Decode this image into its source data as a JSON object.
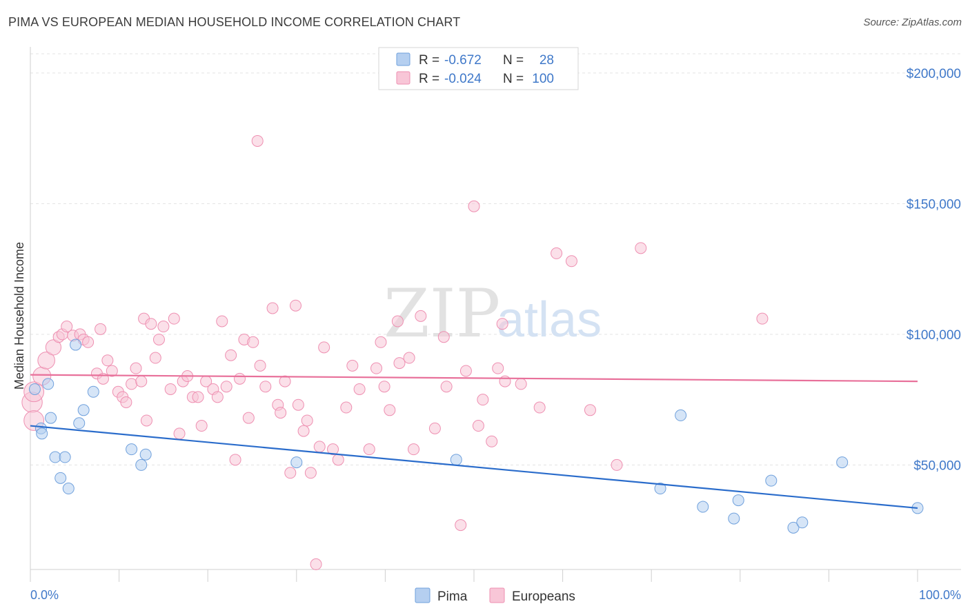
{
  "header": {
    "title": "PIMA VS EUROPEAN MEDIAN HOUSEHOLD INCOME CORRELATION CHART",
    "source": "Source: ZipAtlas.com"
  },
  "watermark": {
    "zip": "ZIP",
    "atlas": "atlas"
  },
  "chart_data": {
    "type": "scatter",
    "xlabel": "",
    "ylabel": "Median Household Income",
    "xlim": [
      0,
      100
    ],
    "ylim": [
      10000,
      210000
    ],
    "x_tick_labels": [
      "0.0%",
      "100.0%"
    ],
    "y_ticks": [
      50000,
      100000,
      150000,
      200000
    ],
    "y_tick_labels": [
      "$50,000",
      "$100,000",
      "$150,000",
      "$200,000"
    ],
    "grid": true,
    "legend_position": "top-center",
    "stats": [
      {
        "r_label": "R =",
        "r_value": "-0.672",
        "n_label": "N =",
        "n_value": "28"
      },
      {
        "r_label": "R =",
        "r_value": "-0.024",
        "n_label": "N =",
        "n_value": "100"
      }
    ],
    "series": [
      {
        "name": "Pima",
        "color": "#6fa0dc",
        "fill": "#b5cff0",
        "line_color": "#2a6ccb",
        "trend": {
          "x": [
            0,
            100
          ],
          "y": [
            65000,
            33500
          ]
        },
        "points": [
          [
            0.5,
            79000
          ],
          [
            1.2,
            64000
          ],
          [
            1.3,
            62000
          ],
          [
            2.0,
            81000
          ],
          [
            2.3,
            68000
          ],
          [
            2.8,
            53000
          ],
          [
            3.4,
            45000
          ],
          [
            3.9,
            53000
          ],
          [
            4.3,
            41000
          ],
          [
            5.1,
            96000
          ],
          [
            5.5,
            66000
          ],
          [
            6.0,
            71000
          ],
          [
            7.1,
            78000
          ],
          [
            11.4,
            56000
          ],
          [
            12.5,
            50000
          ],
          [
            13.0,
            54000
          ],
          [
            30.0,
            51000
          ],
          [
            48.0,
            52000
          ],
          [
            71.0,
            41000
          ],
          [
            73.3,
            69000
          ],
          [
            75.8,
            34000
          ],
          [
            79.3,
            29500
          ],
          [
            79.8,
            36500
          ],
          [
            83.5,
            44000
          ],
          [
            86.0,
            26000
          ],
          [
            87.0,
            28000
          ],
          [
            91.5,
            51000
          ],
          [
            100.0,
            33500
          ]
        ]
      },
      {
        "name": "Europeans",
        "color": "#ee8fb1",
        "fill": "#f8c6d7",
        "line_color": "#e8709a",
        "trend": {
          "x": [
            0,
            100
          ],
          "y": [
            84500,
            82000
          ]
        },
        "points": [
          [
            0.2,
            74000
          ],
          [
            0.4,
            78000
          ],
          [
            0.4,
            67000
          ],
          [
            1.3,
            84000
          ],
          [
            1.8,
            90000
          ],
          [
            2.6,
            95000
          ],
          [
            3.2,
            99000
          ],
          [
            3.6,
            100000
          ],
          [
            4.1,
            103000
          ],
          [
            4.8,
            99500
          ],
          [
            5.6,
            100000
          ],
          [
            6.0,
            98000
          ],
          [
            6.5,
            97000
          ],
          [
            7.5,
            85000
          ],
          [
            7.9,
            102000
          ],
          [
            8.2,
            83000
          ],
          [
            8.7,
            90000
          ],
          [
            9.2,
            86000
          ],
          [
            9.9,
            78000
          ],
          [
            10.4,
            76000
          ],
          [
            10.8,
            74000
          ],
          [
            11.4,
            81000
          ],
          [
            11.9,
            87000
          ],
          [
            12.5,
            82000
          ],
          [
            12.8,
            106000
          ],
          [
            13.1,
            67000
          ],
          [
            13.6,
            104000
          ],
          [
            14.1,
            91000
          ],
          [
            14.5,
            98000
          ],
          [
            15.0,
            103000
          ],
          [
            15.8,
            79000
          ],
          [
            16.2,
            106000
          ],
          [
            16.8,
            62000
          ],
          [
            17.2,
            82000
          ],
          [
            17.7,
            84000
          ],
          [
            18.3,
            76000
          ],
          [
            18.9,
            76000
          ],
          [
            19.3,
            65000
          ],
          [
            19.8,
            82000
          ],
          [
            20.6,
            79000
          ],
          [
            21.1,
            76000
          ],
          [
            21.6,
            105000
          ],
          [
            22.1,
            80000
          ],
          [
            22.6,
            92000
          ],
          [
            23.1,
            52000
          ],
          [
            23.6,
            83000
          ],
          [
            24.1,
            98000
          ],
          [
            24.6,
            68000
          ],
          [
            25.1,
            97000
          ],
          [
            25.6,
            174000
          ],
          [
            25.9,
            88000
          ],
          [
            26.5,
            80000
          ],
          [
            27.3,
            110000
          ],
          [
            27.9,
            73000
          ],
          [
            28.2,
            70000
          ],
          [
            28.7,
            82000
          ],
          [
            29.3,
            47000
          ],
          [
            29.9,
            111000
          ],
          [
            30.2,
            73000
          ],
          [
            30.8,
            63000
          ],
          [
            31.2,
            67000
          ],
          [
            31.6,
            47000
          ],
          [
            32.2,
            12000
          ],
          [
            32.6,
            57000
          ],
          [
            33.1,
            95000
          ],
          [
            34.1,
            56000
          ],
          [
            34.7,
            52000
          ],
          [
            35.6,
            72000
          ],
          [
            36.3,
            88000
          ],
          [
            37.1,
            79000
          ],
          [
            38.2,
            56000
          ],
          [
            39.0,
            87000
          ],
          [
            39.5,
            97000
          ],
          [
            39.9,
            80000
          ],
          [
            40.5,
            71000
          ],
          [
            41.6,
            89000
          ],
          [
            42.7,
            91000
          ],
          [
            43.2,
            56000
          ],
          [
            44.0,
            107000
          ],
          [
            45.6,
            64000
          ],
          [
            46.6,
            99000
          ],
          [
            46.9,
            80000
          ],
          [
            48.5,
            27000
          ],
          [
            49.1,
            86000
          ],
          [
            50.0,
            149000
          ],
          [
            50.5,
            65000
          ],
          [
            51.0,
            75000
          ],
          [
            52.0,
            59000
          ],
          [
            53.2,
            104000
          ],
          [
            53.5,
            82000
          ],
          [
            55.3,
            81000
          ],
          [
            57.4,
            72000
          ],
          [
            59.3,
            131000
          ],
          [
            61.0,
            128000
          ],
          [
            63.1,
            71000
          ],
          [
            66.1,
            50000
          ],
          [
            68.8,
            133000
          ],
          [
            82.5,
            106000
          ],
          [
            41.4,
            105000
          ],
          [
            52.7,
            87000
          ]
        ]
      }
    ]
  }
}
